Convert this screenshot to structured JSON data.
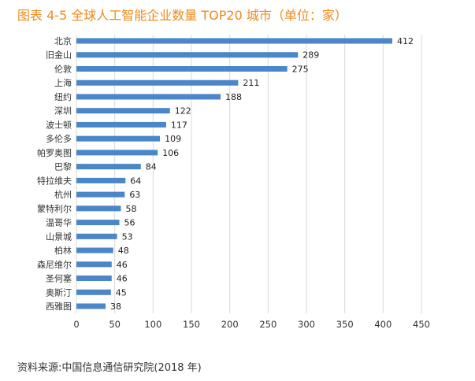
{
  "title": "图表 4-5 全球人工智能企业数量 TOP20 城市（单位：家）",
  "source": "资料来源:中国信息通信研究院(2018 年)",
  "chart_data": {
    "type": "bar",
    "orientation": "horizontal",
    "title": "图表 4-5 全球人工智能企业数量 TOP20 城市（单位：家）",
    "categories": [
      "北京",
      "旧金山",
      "伦敦",
      "上海",
      "纽约",
      "深圳",
      "波士顿",
      "多伦多",
      "帕罗奥图",
      "巴黎",
      "特拉维夫",
      "杭州",
      "蒙特利尔",
      "温哥华",
      "山景城",
      "柏林",
      "森尼维尔",
      "圣何塞",
      "奥斯汀",
      "西雅图"
    ],
    "values": [
      412,
      289,
      275,
      211,
      188,
      122,
      117,
      109,
      106,
      84,
      64,
      63,
      58,
      56,
      53,
      48,
      46,
      46,
      45,
      38
    ],
    "xlim": [
      0,
      450
    ],
    "xticks": [
      0,
      50,
      100,
      150,
      200,
      250,
      300,
      350,
      400,
      450
    ],
    "xlabel": "",
    "ylabel": "",
    "grid": true,
    "bar_color": "#4a86c8"
  }
}
